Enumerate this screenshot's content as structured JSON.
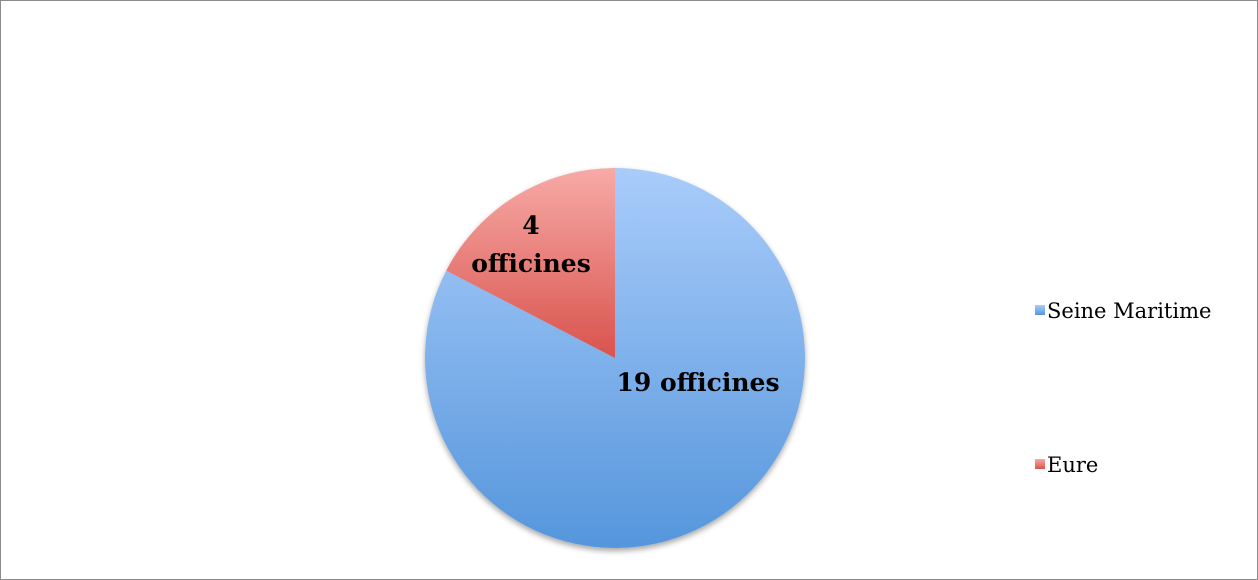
{
  "chart_data": {
    "type": "pie",
    "title": "",
    "slices": [
      {
        "name": "Seine Maritime",
        "value": 19,
        "label": "19 officines",
        "color_light": "#a9ccfa",
        "color_dark": "#5596dc",
        "color": "#7fb1ec"
      },
      {
        "name": "Eure",
        "value": 4,
        "label_lines": [
          "4",
          "officines"
        ],
        "color_light": "#f7aaa6",
        "color_dark": "#d9534d",
        "color": "#ec7f7a"
      }
    ],
    "start_angle_deg": 0,
    "direction": "clockwise",
    "legend": {
      "position": "right",
      "entries": [
        "Seine Maritime",
        "Eure"
      ]
    }
  }
}
